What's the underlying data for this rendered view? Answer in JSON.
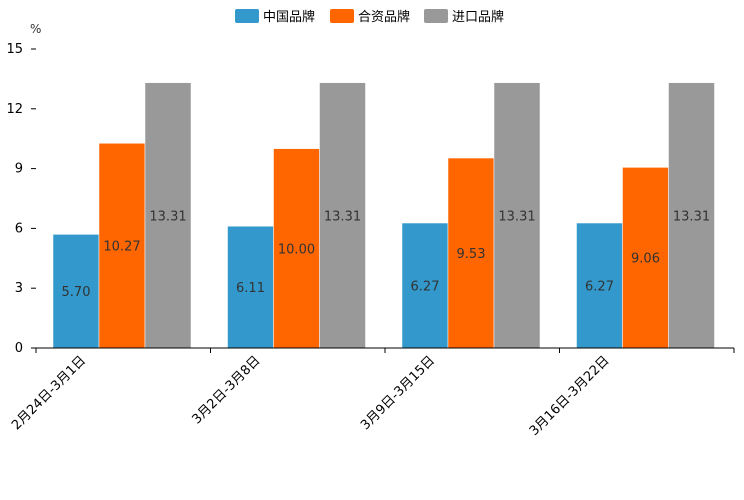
{
  "chart_data": {
    "type": "bar",
    "title": "",
    "xlabel": "",
    "ylabel": "%",
    "ylim": [
      0,
      15
    ],
    "yticks": [
      0,
      3,
      6,
      9,
      12,
      15
    ],
    "grid": false,
    "legend_position": "top-center",
    "categories": [
      "2月24日-3月1日",
      "3月2日-3月8日",
      "3月9日-3月15日",
      "3月16日-3月22日"
    ],
    "series": [
      {
        "name": "中国品牌",
        "color": "#3399cc",
        "values": [
          5.7,
          6.11,
          6.27,
          6.27
        ],
        "labels": [
          "5.70",
          "6.11",
          "6.27",
          "6.27"
        ]
      },
      {
        "name": "合资品牌",
        "color": "#ff6600",
        "values": [
          10.27,
          10.0,
          9.53,
          9.06
        ],
        "labels": [
          "10.27",
          "10.00",
          "9.53",
          "9.06"
        ]
      },
      {
        "name": "进口品牌",
        "color": "#999999",
        "values": [
          13.31,
          13.31,
          13.31,
          13.31
        ],
        "labels": [
          "13.31",
          "13.31",
          "13.31",
          "13.31"
        ]
      }
    ]
  }
}
